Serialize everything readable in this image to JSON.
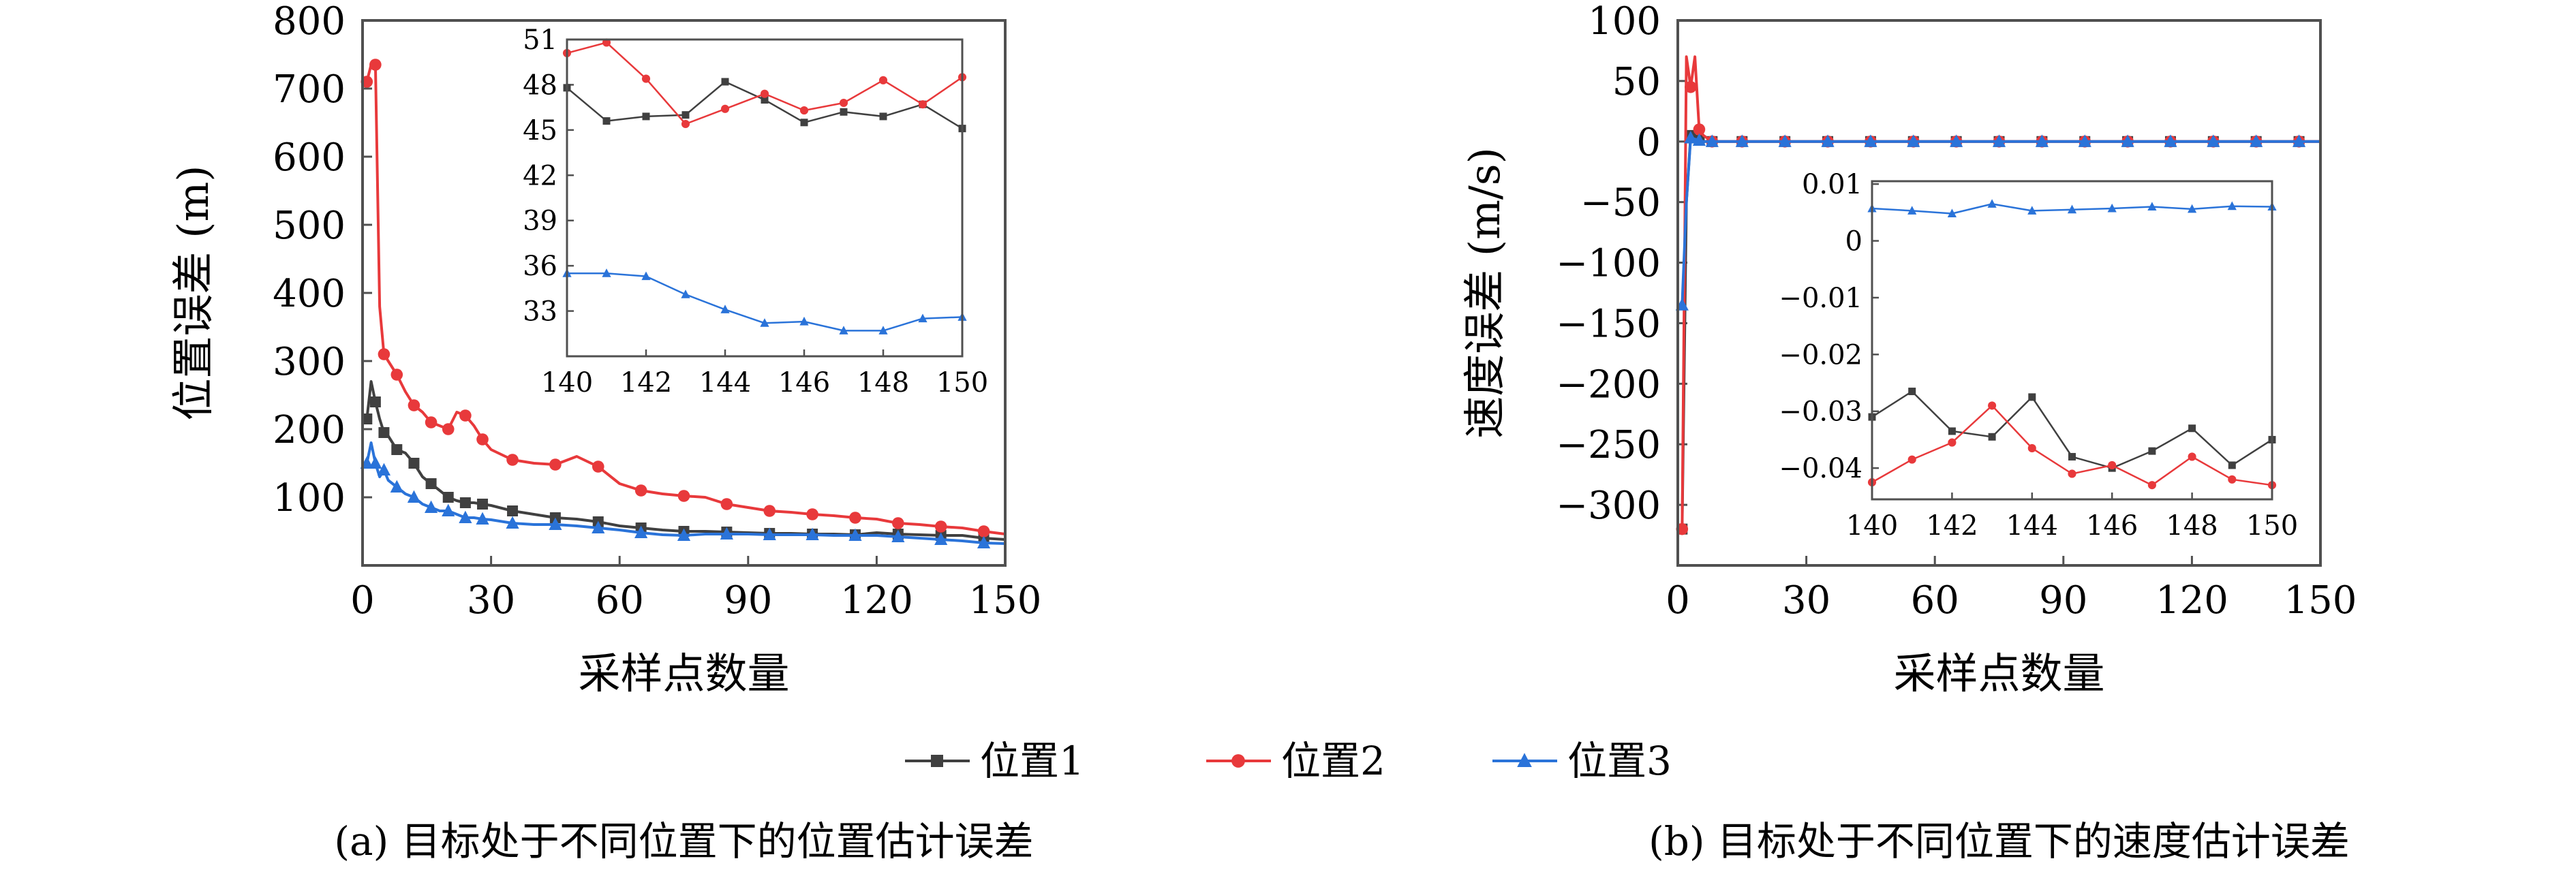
{
  "legend": [
    {
      "label": "位置1",
      "color": "#404040",
      "marker": "square"
    },
    {
      "label": "位置2",
      "color": "#e8393b",
      "marker": "circle"
    },
    {
      "label": "位置3",
      "color": "#2a73d9",
      "marker": "triangle"
    }
  ],
  "chart_data": [
    {
      "type": "line",
      "caption": "(a) 目标处于不同位置下的位置估计误差",
      "title": "",
      "xlabel": "采样点数量",
      "ylabel": "位置误差 (m)",
      "xlim": [
        0,
        150
      ],
      "ylim": [
        0,
        800
      ],
      "xticks": [
        0,
        30,
        60,
        90,
        120,
        150
      ],
      "yticks": [
        100,
        200,
        300,
        400,
        500,
        600,
        700,
        800
      ],
      "x": [
        1,
        2,
        3,
        4,
        5,
        6,
        8,
        10,
        12,
        14,
        16,
        18,
        20,
        22,
        24,
        26,
        28,
        30,
        35,
        40,
        45,
        50,
        55,
        60,
        65,
        70,
        75,
        80,
        85,
        90,
        95,
        100,
        105,
        110,
        115,
        120,
        125,
        130,
        135,
        140,
        145,
        150
      ],
      "series": [
        {
          "name": "位置1",
          "values": [
            215,
            270,
            240,
            215,
            195,
            190,
            170,
            165,
            150,
            130,
            120,
            110,
            100,
            95,
            92,
            92,
            90,
            88,
            80,
            75,
            70,
            68,
            64,
            58,
            55,
            52,
            50,
            50,
            49,
            48,
            47,
            47,
            46,
            46,
            45,
            48,
            46,
            45,
            44,
            44,
            40,
            38
          ]
        },
        {
          "name": "位置2",
          "values": [
            710,
            735,
            735,
            380,
            310,
            300,
            280,
            255,
            235,
            225,
            210,
            205,
            200,
            225,
            220,
            205,
            185,
            170,
            155,
            150,
            148,
            160,
            145,
            120,
            110,
            105,
            102,
            100,
            90,
            85,
            80,
            78,
            75,
            73,
            70,
            68,
            62,
            60,
            57,
            55,
            50,
            46
          ]
        },
        {
          "name": "位置3",
          "values": [
            150,
            180,
            150,
            130,
            140,
            125,
            115,
            105,
            100,
            90,
            85,
            80,
            80,
            75,
            70,
            70,
            68,
            67,
            62,
            60,
            60,
            58,
            55,
            52,
            48,
            45,
            44,
            46,
            46,
            46,
            45,
            45,
            45,
            44,
            44,
            44,
            42,
            40,
            38,
            36,
            33,
            32
          ]
        }
      ],
      "inset": {
        "xlim": [
          140,
          150
        ],
        "ylim": [
          30,
          51
        ],
        "xticks": [
          140,
          142,
          144,
          146,
          148,
          150
        ],
        "yticks": [
          33,
          36,
          39,
          42,
          45,
          48,
          51
        ],
        "x": [
          140,
          141,
          142,
          143,
          144,
          145,
          146,
          147,
          148,
          149,
          150
        ],
        "series": [
          {
            "name": "位置1",
            "values": [
              47.8,
              45.6,
              45.9,
              46.0,
              48.2,
              47.0,
              45.5,
              46.2,
              45.9,
              46.7,
              45.1
            ]
          },
          {
            "name": "位置2",
            "values": [
              50.1,
              50.8,
              48.4,
              45.4,
              46.4,
              47.4,
              46.3,
              46.8,
              48.3,
              46.7,
              48.5
            ]
          },
          {
            "name": "位置3",
            "values": [
              35.5,
              35.5,
              35.3,
              34.1,
              33.1,
              32.2,
              32.3,
              31.7,
              31.7,
              32.5,
              32.6
            ]
          }
        ]
      }
    },
    {
      "type": "line",
      "caption": "(b) 目标处于不同位置下的速度估计误差",
      "title": "",
      "xlabel": "采样点数量",
      "ylabel": "速度误差 (m/s)",
      "xlim": [
        0,
        150
      ],
      "ylim": [
        -350,
        100
      ],
      "xticks": [
        0,
        30,
        60,
        90,
        120,
        150
      ],
      "yticks": [
        100,
        50,
        0,
        -50,
        -100,
        -150,
        -200,
        -250,
        -300
      ],
      "x": [
        1,
        2,
        3,
        4,
        5,
        6,
        8,
        10,
        15,
        20,
        25,
        30,
        35,
        40,
        45,
        50,
        55,
        60,
        65,
        70,
        75,
        80,
        85,
        90,
        95,
        100,
        105,
        110,
        115,
        120,
        125,
        130,
        135,
        140,
        145,
        150
      ],
      "series": [
        {
          "name": "位置1",
          "values": [
            -320,
            -50,
            5,
            3,
            1,
            0,
            0,
            0,
            0,
            0,
            0,
            0,
            0,
            0,
            0,
            0,
            0,
            0,
            0,
            0,
            0,
            0,
            0,
            0,
            0,
            0,
            0,
            0,
            0,
            0,
            0,
            0,
            0,
            0,
            0,
            0
          ]
        },
        {
          "name": "位置2",
          "values": [
            -320,
            70,
            45,
            70,
            10,
            5,
            0,
            0,
            0,
            0,
            0,
            0,
            0,
            0,
            0,
            0,
            0,
            0,
            0,
            0,
            0,
            0,
            0,
            0,
            0,
            0,
            0,
            0,
            0,
            0,
            0,
            0,
            0,
            0,
            0,
            0
          ]
        },
        {
          "name": "位置3",
          "values": [
            -135,
            -50,
            3,
            2,
            1,
            0,
            0,
            0,
            0,
            0,
            0,
            0,
            0,
            0,
            0,
            0,
            0,
            0,
            0,
            0,
            0,
            0,
            0,
            0,
            0,
            0,
            0,
            0,
            0,
            0,
            0,
            0,
            0,
            0,
            0,
            0
          ]
        }
      ],
      "inset": {
        "xlim": [
          140,
          150
        ],
        "ylim": [
          -0.0455,
          0.0105
        ],
        "xticks": [
          140,
          142,
          144,
          146,
          148,
          150
        ],
        "yticks": [
          0.01,
          0,
          -0.01,
          -0.02,
          -0.03,
          -0.04
        ],
        "ytick_labels": [
          "0.01",
          "0",
          "−0.01",
          "−0.02",
          "−0.03",
          "−0.04"
        ],
        "x": [
          140,
          141,
          142,
          143,
          144,
          145,
          146,
          147,
          148,
          149,
          150
        ],
        "series": [
          {
            "name": "位置1",
            "values": [
              -0.031,
              -0.0265,
              -0.0335,
              -0.0345,
              -0.0275,
              -0.038,
              -0.04,
              -0.037,
              -0.033,
              -0.0395,
              -0.035
            ]
          },
          {
            "name": "位置2",
            "values": [
              -0.0425,
              -0.0385,
              -0.0355,
              -0.029,
              -0.0365,
              -0.041,
              -0.0395,
              -0.043,
              -0.038,
              -0.042,
              -0.043
            ]
          },
          {
            "name": "位置3",
            "values": [
              0.0057,
              0.0053,
              0.0048,
              0.0065,
              0.0053,
              0.0055,
              0.0057,
              0.006,
              0.0056,
              0.0061,
              0.006
            ]
          }
        ]
      }
    }
  ]
}
